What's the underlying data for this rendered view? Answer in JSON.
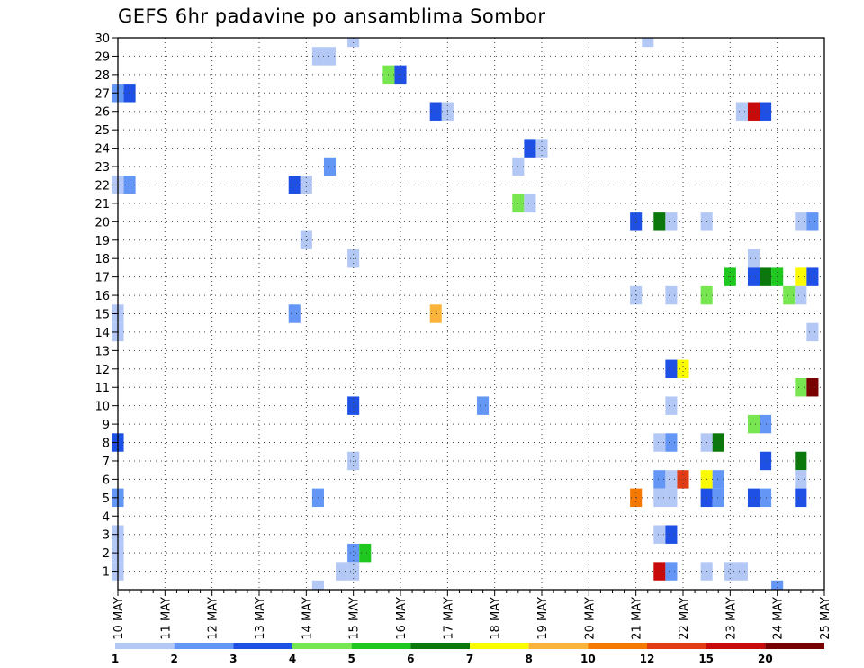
{
  "title": "GEFS 6hr padavine po ansamblima Sombor",
  "chart_data": {
    "type": "heatmap",
    "title": "GEFS 6hr padavine po ansamblima Sombor",
    "xlabel": "",
    "ylabel": "",
    "x_axis": {
      "start": "10 MAY",
      "end": "25 MAY",
      "tick_labels": [
        "10 MAY",
        "11 MAY",
        "12 MAY",
        "13 MAY",
        "14 MAY",
        "15 MAY",
        "16 MAY",
        "17 MAY",
        "18 MAY",
        "19 MAY",
        "20 MAY",
        "21 MAY",
        "22 MAY",
        "23 MAY",
        "24 MAY",
        "25 MAY"
      ],
      "step_hours": 6
    },
    "y_axis": {
      "range": [
        0,
        30
      ],
      "tick_labels": [
        "1",
        "2",
        "3",
        "4",
        "5",
        "6",
        "7",
        "8",
        "9",
        "10",
        "11",
        "12",
        "13",
        "14",
        "15",
        "16",
        "17",
        "18",
        "19",
        "20",
        "21",
        "22",
        "23",
        "24",
        "25",
        "26",
        "27",
        "28",
        "29",
        "30"
      ]
    },
    "grid": true,
    "legend": {
      "placement": "bottom",
      "bins": [
        {
          "label": "1",
          "color": "#b4c8f5"
        },
        {
          "label": "2",
          "color": "#6496f5"
        },
        {
          "label": "3",
          "color": "#1e50e6"
        },
        {
          "label": "4",
          "color": "#78e650"
        },
        {
          "label": "5",
          "color": "#1ec81e"
        },
        {
          "label": "6",
          "color": "#0a780a"
        },
        {
          "label": "7",
          "color": "#fafa00"
        },
        {
          "label": "8",
          "color": "#fab43c"
        },
        {
          "label": "10",
          "color": "#f57800"
        },
        {
          "label": "12",
          "color": "#e13c14"
        },
        {
          "label": "15",
          "color": "#c80a0a"
        },
        {
          "label": "20",
          "color": "#780000"
        }
      ],
      "end_label": ""
    },
    "cells": [
      {
        "member": 30,
        "time": "2024-05-15 00:00",
        "color": "#b4c8f5"
      },
      {
        "member": 30,
        "time": "2024-05-21 06:00",
        "color": "#b4c8f5"
      },
      {
        "member": 29,
        "time": "2024-05-14 06:00",
        "color": "#b4c8f5"
      },
      {
        "member": 29,
        "time": "2024-05-14 12:00",
        "color": "#b4c8f5"
      },
      {
        "member": 28,
        "time": "2024-05-15 18:00",
        "color": "#78e650"
      },
      {
        "member": 28,
        "time": "2024-05-16 00:00",
        "color": "#1e50e6"
      },
      {
        "member": 27,
        "time": "2024-05-10 00:00",
        "color": "#6496f5"
      },
      {
        "member": 27,
        "time": "2024-05-10 06:00",
        "color": "#1e50e6"
      },
      {
        "member": 26,
        "time": "2024-05-16 18:00",
        "color": "#1e50e6"
      },
      {
        "member": 26,
        "time": "2024-05-17 00:00",
        "color": "#b4c8f5"
      },
      {
        "member": 26,
        "time": "2024-05-23 06:00",
        "color": "#b4c8f5"
      },
      {
        "member": 26,
        "time": "2024-05-23 12:00",
        "color": "#c80a0a"
      },
      {
        "member": 26,
        "time": "2024-05-23 18:00",
        "color": "#1e50e6"
      },
      {
        "member": 24,
        "time": "2024-05-18 18:00",
        "color": "#1e50e6"
      },
      {
        "member": 24,
        "time": "2024-05-19 00:00",
        "color": "#b4c8f5"
      },
      {
        "member": 23,
        "time": "2024-05-14 12:00",
        "color": "#6496f5"
      },
      {
        "member": 23,
        "time": "2024-05-18 12:00",
        "color": "#b4c8f5"
      },
      {
        "member": 22,
        "time": "2024-05-10 00:00",
        "color": "#b4c8f5"
      },
      {
        "member": 22,
        "time": "2024-05-10 06:00",
        "color": "#6496f5"
      },
      {
        "member": 22,
        "time": "2024-05-13 18:00",
        "color": "#1e50e6"
      },
      {
        "member": 22,
        "time": "2024-05-14 00:00",
        "color": "#b4c8f5"
      },
      {
        "member": 21,
        "time": "2024-05-18 12:00",
        "color": "#78e650"
      },
      {
        "member": 21,
        "time": "2024-05-18 18:00",
        "color": "#b4c8f5"
      },
      {
        "member": 20,
        "time": "2024-05-21 00:00",
        "color": "#1e50e6"
      },
      {
        "member": 20,
        "time": "2024-05-21 12:00",
        "color": "#0a780a"
      },
      {
        "member": 20,
        "time": "2024-05-21 18:00",
        "color": "#b4c8f5"
      },
      {
        "member": 20,
        "time": "2024-05-22 12:00",
        "color": "#b4c8f5"
      },
      {
        "member": 20,
        "time": "2024-05-24 12:00",
        "color": "#b4c8f5"
      },
      {
        "member": 20,
        "time": "2024-05-24 18:00",
        "color": "#6496f5"
      },
      {
        "member": 19,
        "time": "2024-05-14 00:00",
        "color": "#b4c8f5"
      },
      {
        "member": 18,
        "time": "2024-05-15 00:00",
        "color": "#b4c8f5"
      },
      {
        "member": 18,
        "time": "2024-05-23 12:00",
        "color": "#b4c8f5"
      },
      {
        "member": 17,
        "time": "2024-05-23 00:00",
        "color": "#1ec81e"
      },
      {
        "member": 17,
        "time": "2024-05-23 12:00",
        "color": "#1e50e6"
      },
      {
        "member": 17,
        "time": "2024-05-23 18:00",
        "color": "#0a780a"
      },
      {
        "member": 17,
        "time": "2024-05-24 00:00",
        "color": "#1ec81e"
      },
      {
        "member": 17,
        "time": "2024-05-24 12:00",
        "color": "#fafa00"
      },
      {
        "member": 17,
        "time": "2024-05-24 18:00",
        "color": "#1e50e6"
      },
      {
        "member": 16,
        "time": "2024-05-21 00:00",
        "color": "#b4c8f5"
      },
      {
        "member": 16,
        "time": "2024-05-21 18:00",
        "color": "#b4c8f5"
      },
      {
        "member": 16,
        "time": "2024-05-22 12:00",
        "color": "#78e650"
      },
      {
        "member": 16,
        "time": "2024-05-24 06:00",
        "color": "#78e650"
      },
      {
        "member": 16,
        "time": "2024-05-24 12:00",
        "color": "#b4c8f5"
      },
      {
        "member": 15,
        "time": "2024-05-10 00:00",
        "color": "#b4c8f5"
      },
      {
        "member": 15,
        "time": "2024-05-13 18:00",
        "color": "#6496f5"
      },
      {
        "member": 15,
        "time": "2024-05-16 18:00",
        "color": "#fab43c"
      },
      {
        "member": 14,
        "time": "2024-05-10 00:00",
        "color": "#b4c8f5"
      },
      {
        "member": 14,
        "time": "2024-05-24 18:00",
        "color": "#b4c8f5"
      },
      {
        "member": 12,
        "time": "2024-05-21 18:00",
        "color": "#1e50e6"
      },
      {
        "member": 12,
        "time": "2024-05-22 00:00",
        "color": "#fafa00"
      },
      {
        "member": 11,
        "time": "2024-05-24 12:00",
        "color": "#78e650"
      },
      {
        "member": 11,
        "time": "2024-05-24 18:00",
        "color": "#780000"
      },
      {
        "member": 10,
        "time": "2024-05-15 00:00",
        "color": "#1e50e6"
      },
      {
        "member": 10,
        "time": "2024-05-17 18:00",
        "color": "#6496f5"
      },
      {
        "member": 10,
        "time": "2024-05-21 18:00",
        "color": "#b4c8f5"
      },
      {
        "member": 9,
        "time": "2024-05-23 12:00",
        "color": "#78e650"
      },
      {
        "member": 9,
        "time": "2024-05-23 18:00",
        "color": "#6496f5"
      },
      {
        "member": 8,
        "time": "2024-05-10 00:00",
        "color": "#1e50e6"
      },
      {
        "member": 8,
        "time": "2024-05-21 12:00",
        "color": "#b4c8f5"
      },
      {
        "member": 8,
        "time": "2024-05-21 18:00",
        "color": "#6496f5"
      },
      {
        "member": 8,
        "time": "2024-05-22 12:00",
        "color": "#b4c8f5"
      },
      {
        "member": 8,
        "time": "2024-05-22 18:00",
        "color": "#0a780a"
      },
      {
        "member": 7,
        "time": "2024-05-15 00:00",
        "color": "#b4c8f5"
      },
      {
        "member": 7,
        "time": "2024-05-23 18:00",
        "color": "#1e50e6"
      },
      {
        "member": 7,
        "time": "2024-05-24 12:00",
        "color": "#0a780a"
      },
      {
        "member": 6,
        "time": "2024-05-21 12:00",
        "color": "#6496f5"
      },
      {
        "member": 6,
        "time": "2024-05-21 18:00",
        "color": "#b4c8f5"
      },
      {
        "member": 6,
        "time": "2024-05-22 00:00",
        "color": "#e13c14"
      },
      {
        "member": 6,
        "time": "2024-05-22 12:00",
        "color": "#fafa00"
      },
      {
        "member": 6,
        "time": "2024-05-22 18:00",
        "color": "#6496f5"
      },
      {
        "member": 6,
        "time": "2024-05-24 12:00",
        "color": "#b4c8f5"
      },
      {
        "member": 5,
        "time": "2024-05-10 00:00",
        "color": "#6496f5"
      },
      {
        "member": 5,
        "time": "2024-05-14 06:00",
        "color": "#6496f5"
      },
      {
        "member": 5,
        "time": "2024-05-21 00:00",
        "color": "#f57800"
      },
      {
        "member": 5,
        "time": "2024-05-21 12:00",
        "color": "#b4c8f5"
      },
      {
        "member": 5,
        "time": "2024-05-21 18:00",
        "color": "#b4c8f5"
      },
      {
        "member": 5,
        "time": "2024-05-22 12:00",
        "color": "#1e50e6"
      },
      {
        "member": 5,
        "time": "2024-05-22 18:00",
        "color": "#6496f5"
      },
      {
        "member": 5,
        "time": "2024-05-23 12:00",
        "color": "#1e50e6"
      },
      {
        "member": 5,
        "time": "2024-05-23 18:00",
        "color": "#6496f5"
      },
      {
        "member": 5,
        "time": "2024-05-24 12:00",
        "color": "#1e50e6"
      },
      {
        "member": 3,
        "time": "2024-05-10 00:00",
        "color": "#b4c8f5"
      },
      {
        "member": 3,
        "time": "2024-05-21 12:00",
        "color": "#b4c8f5"
      },
      {
        "member": 3,
        "time": "2024-05-21 18:00",
        "color": "#1e50e6"
      },
      {
        "member": 2,
        "time": "2024-05-10 00:00",
        "color": "#b4c8f5"
      },
      {
        "member": 2,
        "time": "2024-05-15 00:00",
        "color": "#6496f5"
      },
      {
        "member": 2,
        "time": "2024-05-15 06:00",
        "color": "#1ec81e"
      },
      {
        "member": 1,
        "time": "2024-05-10 00:00",
        "color": "#b4c8f5"
      },
      {
        "member": 1,
        "time": "2024-05-14 18:00",
        "color": "#b4c8f5"
      },
      {
        "member": 1,
        "time": "2024-05-15 00:00",
        "color": "#b4c8f5"
      },
      {
        "member": 1,
        "time": "2024-05-21 12:00",
        "color": "#c80a0a"
      },
      {
        "member": 1,
        "time": "2024-05-21 18:00",
        "color": "#6496f5"
      },
      {
        "member": 1,
        "time": "2024-05-22 12:00",
        "color": "#b4c8f5"
      },
      {
        "member": 1,
        "time": "2024-05-23 00:00",
        "color": "#b4c8f5"
      },
      {
        "member": 1,
        "time": "2024-05-23 06:00",
        "color": "#b4c8f5"
      },
      {
        "member": 0,
        "time": "2024-05-14 06:00",
        "color": "#b4c8f5"
      },
      {
        "member": 0,
        "time": "2024-05-24 00:00",
        "color": "#6496f5"
      }
    ]
  }
}
